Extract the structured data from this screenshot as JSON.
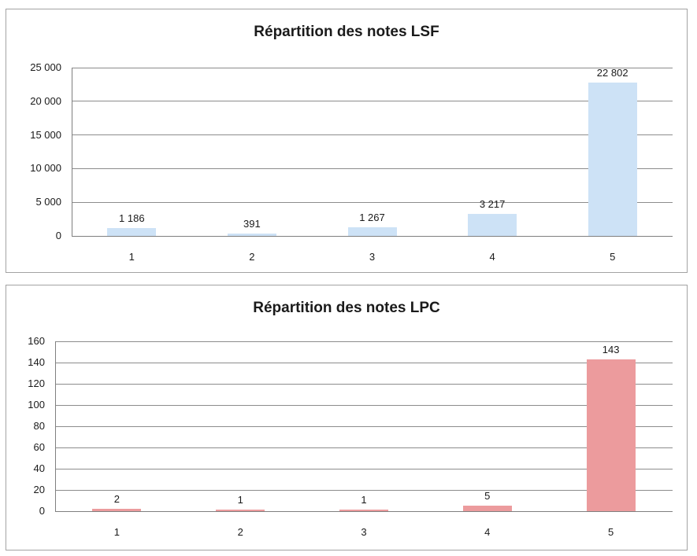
{
  "chart_data": [
    {
      "type": "bar",
      "title": "Répartition des notes LSF",
      "categories": [
        "1",
        "2",
        "3",
        "4",
        "5"
      ],
      "values": [
        1186,
        391,
        1267,
        3217,
        22802
      ],
      "value_labels": [
        "1 186",
        "391",
        "1 267",
        "3 217",
        "22 802"
      ],
      "xlabel": "",
      "ylabel": "",
      "ylim": [
        0,
        25000
      ],
      "y_step": 5000,
      "y_tick_labels": [
        "0",
        "5 000",
        "10 000",
        "15 000",
        "20 000",
        "25 000"
      ],
      "grid": true,
      "legend": "none",
      "bar_color": "#cde2f6"
    },
    {
      "type": "bar",
      "title": "Répartition des notes LPC",
      "categories": [
        "1",
        "2",
        "3",
        "4",
        "5"
      ],
      "values": [
        2,
        1,
        1,
        5,
        143
      ],
      "value_labels": [
        "2",
        "1",
        "1",
        "5",
        "143"
      ],
      "xlabel": "",
      "ylabel": "",
      "ylim": [
        0,
        160
      ],
      "y_step": 20,
      "y_tick_labels": [
        "0",
        "20",
        "40",
        "60",
        "80",
        "100",
        "120",
        "140",
        "160"
      ],
      "grid": true,
      "legend": "none",
      "bar_color": "#ec9b9d"
    }
  ],
  "colors": {
    "grid": "#8c8c8c",
    "axis": "#7f7f7f",
    "text": "#1a1a1a",
    "panel_border": "#a3a3a3",
    "background": "#ffffff"
  }
}
